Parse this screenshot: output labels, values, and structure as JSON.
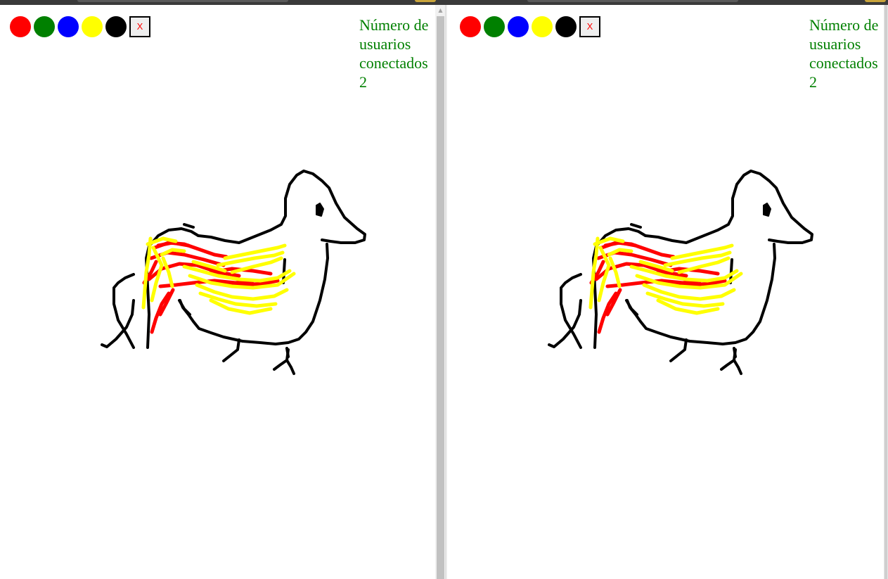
{
  "panes": [
    {
      "palette": {
        "colors": [
          {
            "name": "red",
            "hex": "#ff0000"
          },
          {
            "name": "green",
            "hex": "#008000"
          },
          {
            "name": "blue",
            "hex": "#0000ff"
          },
          {
            "name": "yellow",
            "hex": "#ffff00"
          },
          {
            "name": "black",
            "hex": "#000000"
          }
        ],
        "clear_label": "X"
      },
      "users": {
        "label_line1": "Número de",
        "label_line2": "usuarios",
        "label_line3": "conectados",
        "count": "2"
      }
    },
    {
      "palette": {
        "colors": [
          {
            "name": "red",
            "hex": "#ff0000"
          },
          {
            "name": "green",
            "hex": "#008000"
          },
          {
            "name": "blue",
            "hex": "#0000ff"
          },
          {
            "name": "yellow",
            "hex": "#ffff00"
          },
          {
            "name": "black",
            "hex": "#000000"
          }
        ],
        "clear_label": "X"
      },
      "users": {
        "label_line1": "Número de",
        "label_line2": "usuarios",
        "label_line3": "conectados",
        "count": "2"
      }
    }
  ],
  "drawing": {
    "stroke_colors": {
      "outline": "#000000",
      "fill_red": "#ff0000",
      "fill_yellow": "#ffff00"
    }
  }
}
